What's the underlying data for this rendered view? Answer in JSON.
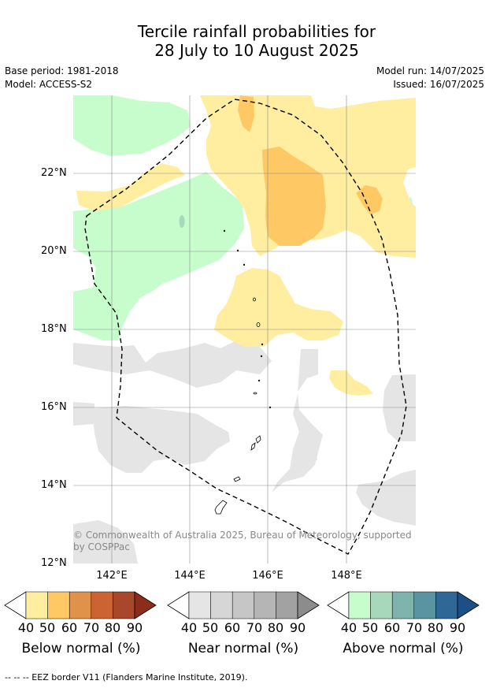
{
  "header": {
    "title_line1": "Tercile rainfall probabilities for",
    "title_line2": "28 July to 10 August 2025",
    "base_period": "Base period: 1981-2018",
    "model": "Model: ACCESS-S2",
    "model_run": "Model run: 14/07/2025",
    "issued": "Issued: 16/07/2025"
  },
  "map": {
    "lat_labels": [
      "22°N",
      "20°N",
      "18°N",
      "16°N",
      "14°N",
      "12°N"
    ],
    "lon_labels": [
      "142°E",
      "144°E",
      "146°E",
      "148°E"
    ],
    "copyright": "© Commonwealth of Australia 2025, Bureau of Meteorology, supported by COSPPac"
  },
  "legend": {
    "ticks": [
      "40",
      "50",
      "60",
      "70",
      "80",
      "90"
    ],
    "below": {
      "label": "Below normal (%)",
      "colors": [
        "#ffeda0",
        "#fec965",
        "#e0924b",
        "#cc6333",
        "#a8472a",
        "#8c2d1b"
      ]
    },
    "near": {
      "label": "Near normal (%)",
      "colors": [
        "#e5e5e5",
        "#d6d6d6",
        "#c6c6c6",
        "#b5b5b5",
        "#a2a2a2",
        "#8c8c8c"
      ]
    },
    "above": {
      "label": "Above normal (%)",
      "colors": [
        "#c7fccc",
        "#a7d8bb",
        "#7fb4ad",
        "#5a94a2",
        "#2f6797",
        "#1b4f86"
      ]
    },
    "footnote": "-- -- -- EEZ border V11 (Flanders Marine Institute, 2019)."
  }
}
